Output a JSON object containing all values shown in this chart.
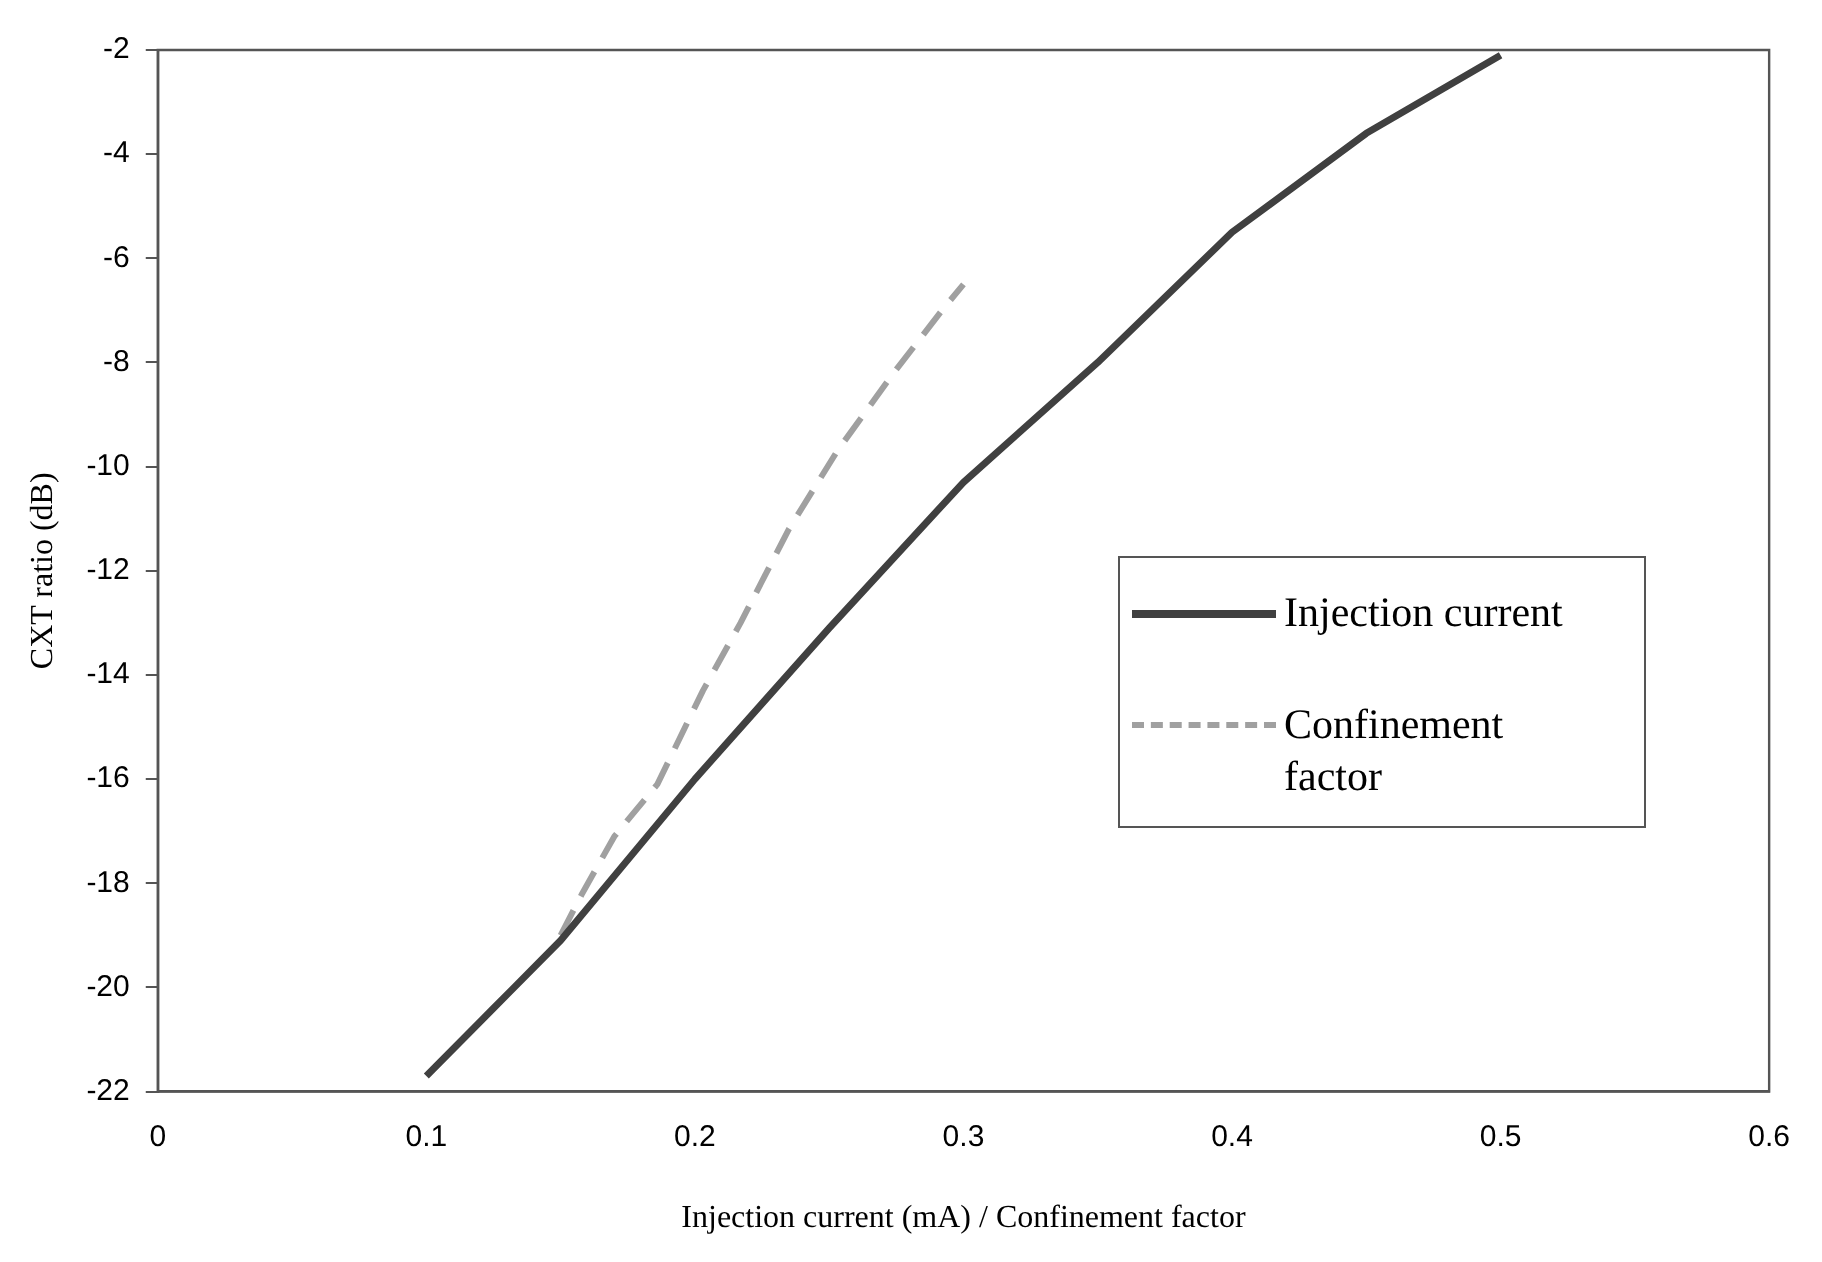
{
  "chart_data": {
    "type": "line",
    "xlabel": "Injection current (mA) / Confinement factor",
    "ylabel": "CXT ratio (dB)",
    "xlim": [
      0,
      0.6
    ],
    "xticks": [
      0,
      0.1,
      0.2,
      0.3,
      0.4,
      0.5,
      0.6
    ],
    "ylim": [
      -22,
      -2
    ],
    "yticks": [
      -22,
      -20,
      -18,
      -16,
      -14,
      -12,
      -10,
      -8,
      -6,
      -4,
      -2
    ],
    "grid": false,
    "legend": "right",
    "marker": "none",
    "series": [
      {
        "name": "Injection current",
        "color": "#404040",
        "line_style": "solid",
        "x": [
          0.1,
          0.125,
          0.15,
          0.2,
          0.25,
          0.3,
          0.35,
          0.4,
          0.45,
          0.5
        ],
        "values": [
          -21.7,
          -20.4,
          -19.1,
          -16.0,
          -13.1,
          -10.3,
          -8.0,
          -5.5,
          -3.6,
          -2.1
        ]
      },
      {
        "name": "Confinement factor",
        "color": "#a0a0a0",
        "line_style": "dashed",
        "x": [
          0.15,
          0.158,
          0.17,
          0.186,
          0.203,
          0.217,
          0.235,
          0.253,
          0.274,
          0.292,
          0.3
        ],
        "values": [
          -19.0,
          -18.2,
          -17.1,
          -16.1,
          -14.3,
          -13.0,
          -11.2,
          -9.7,
          -8.2,
          -7.0,
          -6.5
        ]
      }
    ]
  }
}
